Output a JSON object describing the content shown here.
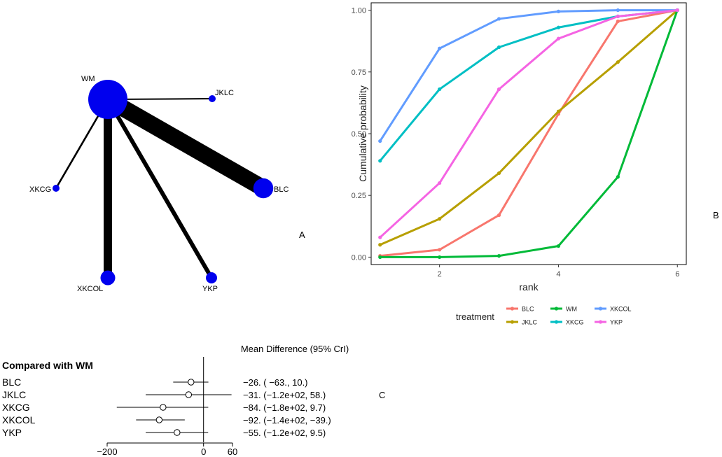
{
  "panel_labels": {
    "a": "A",
    "b": "B",
    "c": "C"
  },
  "chart_data": [
    {
      "type": "network",
      "title": "",
      "nodes": [
        {
          "id": "WM",
          "label": "WM",
          "size": 1.0
        },
        {
          "id": "JKLC",
          "label": "JKLC",
          "size": 0.08
        },
        {
          "id": "BLC",
          "label": "BLC",
          "size": 0.45
        },
        {
          "id": "XKCG",
          "label": "XKCG",
          "size": 0.08
        },
        {
          "id": "XKCOL",
          "label": "XKCOL",
          "size": 0.3
        },
        {
          "id": "YKP",
          "label": "YKP",
          "size": 0.2
        }
      ],
      "edges": [
        {
          "from": "WM",
          "to": "JKLC",
          "weight": 1
        },
        {
          "from": "WM",
          "to": "BLC",
          "weight": 12
        },
        {
          "from": "WM",
          "to": "XKCG",
          "weight": 1.3
        },
        {
          "from": "WM",
          "to": "XKCOL",
          "weight": 6
        },
        {
          "from": "WM",
          "to": "YKP",
          "weight": 3
        }
      ],
      "colors": {
        "node": "#0000ee",
        "edge": "#000000"
      }
    },
    {
      "type": "line",
      "title": "",
      "xlabel": "rank",
      "ylabel": "Cumulative probability",
      "xlim": [
        0.85,
        6.15
      ],
      "ylim": [
        -0.03,
        1.03
      ],
      "xticks": [
        2,
        4,
        6
      ],
      "yticks": [
        0.0,
        0.25,
        0.5,
        0.75,
        1.0
      ],
      "ytick_labels": [
        "0.00",
        "0.25",
        "0.50",
        "0.75",
        "1.00"
      ],
      "x": [
        1,
        2,
        3,
        4,
        5,
        6
      ],
      "legend_title": "treatment",
      "legend_position": "bottom",
      "series": [
        {
          "name": "BLC",
          "color": "#f8766d",
          "values": [
            0.005,
            0.03,
            0.17,
            0.58,
            0.955,
            1.0
          ]
        },
        {
          "name": "JKLC",
          "color": "#b79f00",
          "values": [
            0.05,
            0.155,
            0.34,
            0.59,
            0.79,
            1.0
          ]
        },
        {
          "name": "WM",
          "color": "#00ba38",
          "values": [
            0.0,
            0.0,
            0.005,
            0.045,
            0.325,
            1.0
          ]
        },
        {
          "name": "XKCG",
          "color": "#00bfc4",
          "values": [
            0.39,
            0.68,
            0.85,
            0.93,
            0.975,
            1.0
          ]
        },
        {
          "name": "XKCOL",
          "color": "#619cff",
          "values": [
            0.47,
            0.845,
            0.965,
            0.995,
            1.0,
            1.0
          ]
        },
        {
          "name": "YKP",
          "color": "#f564e3",
          "values": [
            0.08,
            0.3,
            0.68,
            0.885,
            0.975,
            1.0
          ]
        }
      ]
    },
    {
      "type": "forest",
      "title": "Mean Difference (95% CrI)",
      "group_label": "Compared with WM",
      "xlim": [
        -200,
        60
      ],
      "xticks": [
        -200,
        0,
        60
      ],
      "xtick_labels": [
        "−200",
        "0",
        "60"
      ],
      "reference": 0,
      "rows": [
        {
          "label": "BLC",
          "mean": -26,
          "lower": -63,
          "upper": 10,
          "text": "−26. ( −63., 10.)"
        },
        {
          "label": "JKLC",
          "mean": -31,
          "lower": -120,
          "upper": 58,
          "text": "−31. (−1.2e+02, 58.)"
        },
        {
          "label": "XKCG",
          "mean": -84,
          "lower": -180,
          "upper": 9.7,
          "text": "−84. (−1.8e+02, 9.7)"
        },
        {
          "label": "XKCOL",
          "mean": -92,
          "lower": -140,
          "upper": -39,
          "text": "−92. (−1.4e+02, −39.)"
        },
        {
          "label": "YKP",
          "mean": -55,
          "lower": -120,
          "upper": 9.5,
          "text": "−55. (−1.2e+02, 9.5)"
        }
      ]
    }
  ]
}
